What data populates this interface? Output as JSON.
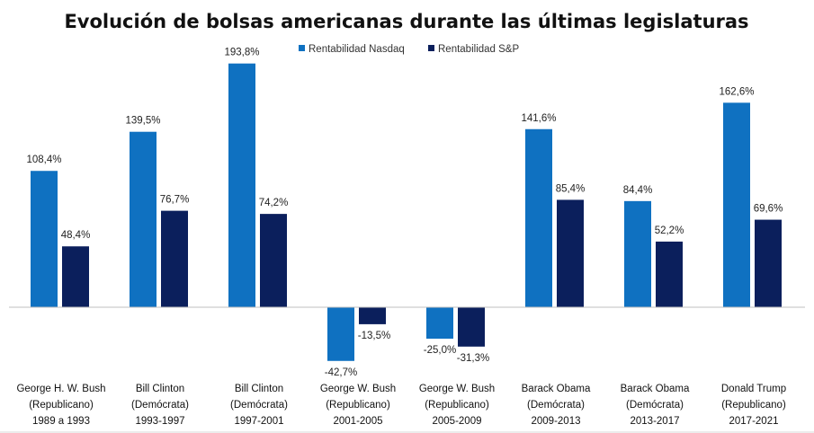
{
  "chart_data": {
    "type": "bar",
    "title": "Evolución de bolsas americanas durante las últimas legislaturas",
    "legend_position": "top",
    "ylim": [
      -50,
      200
    ],
    "colors": {
      "nasdaq": "#0f71c1",
      "sp": "#0b1f5c"
    },
    "categories": [
      [
        "George H. W. Bush",
        "(Republicano)",
        "1989 a 1993"
      ],
      [
        "Bill Clinton",
        "(Demócrata)",
        "1993-1997"
      ],
      [
        "Bill Clinton",
        "(Demócrata)",
        "1997-2001"
      ],
      [
        "George W. Bush",
        "(Republicano)",
        "2001-2005"
      ],
      [
        "George W. Bush",
        "(Republicano)",
        "2005-2009"
      ],
      [
        "Barack Obama",
        "(Demócrata)",
        "2009-2013"
      ],
      [
        "Barack Obama",
        "(Demócrata)",
        "2013-2017"
      ],
      [
        "Donald Trump",
        "(Republicano)",
        "2017-2021"
      ]
    ],
    "series": [
      {
        "name": "Rentabilidad Nasdaq",
        "key": "nasdaq",
        "values": [
          108.4,
          139.5,
          193.8,
          -42.7,
          -25.0,
          141.6,
          84.4,
          162.6
        ],
        "labels": [
          "108,4%",
          "139,5%",
          "193,8%",
          "-42,7%",
          "-25,0%",
          "141,6%",
          "84,4%",
          "162,6%"
        ]
      },
      {
        "name": "Rentabilidad S&P",
        "key": "sp",
        "values": [
          48.4,
          76.7,
          74.2,
          -13.5,
          -31.3,
          85.4,
          52.2,
          69.6
        ],
        "labels": [
          "48,4%",
          "76,7%",
          "74,2%",
          "-13,5%",
          "-31,3%",
          "85,4%",
          "52,2%",
          "69,6%"
        ]
      }
    ]
  }
}
